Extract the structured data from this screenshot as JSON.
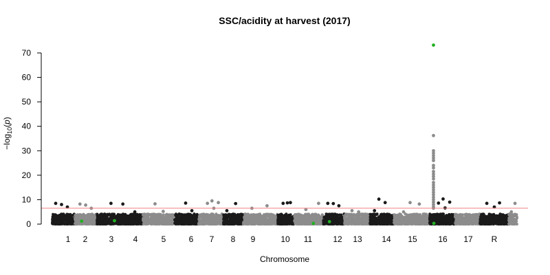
{
  "chart_data": {
    "type": "scatter",
    "title": "SSC/acidity at harvest (2017)",
    "xlabel": "Chromosome",
    "ylabel_prefix": "−log",
    "ylabel_sub": "10",
    "ylabel_var": "p",
    "ylim": [
      0,
      75
    ],
    "yticks": [
      0,
      10,
      20,
      30,
      40,
      50,
      60,
      70
    ],
    "threshold": 6.5,
    "threshold_color": "#f08080",
    "colors": {
      "dark": "#1a1a1a",
      "light": "#8c8c8c",
      "highlight": "#22b022"
    },
    "chromosomes": [
      {
        "label": "1",
        "color": "dark",
        "peaks": [
          8.5,
          8.0,
          7.0
        ]
      },
      {
        "label": "2",
        "color": "light",
        "peaks": [
          8.2,
          7.8,
          6.5,
          1.2
        ]
      },
      {
        "label": "3",
        "color": "dark",
        "peaks": [
          8.5,
          8.2,
          5.0,
          1.4
        ]
      },
      {
        "label": "4",
        "color": "light",
        "peaks": [
          8.3,
          5.2
        ]
      },
      {
        "label": "5",
        "color": "dark",
        "peaks": [
          8.6,
          5.5
        ]
      },
      {
        "label": "6",
        "color": "light",
        "peaks": [
          9.5,
          8.8,
          8.5,
          6.5
        ]
      },
      {
        "label": "7",
        "color": "dark",
        "peaks": [
          8.4,
          5.5
        ]
      },
      {
        "label": "8",
        "color": "light",
        "peaks": [
          7.5,
          6.5
        ]
      },
      {
        "label": "9",
        "color": "dark",
        "peaks": [
          8.8,
          8.5,
          8.7
        ]
      },
      {
        "label": "10",
        "color": "light",
        "peaks": [
          8.5,
          6.0,
          0.3
        ]
      },
      {
        "label": "11",
        "color": "dark",
        "peaks": [
          8.5,
          8.4,
          7.5,
          1.0
        ]
      },
      {
        "label": "12",
        "color": "light",
        "peaks": [
          5.5,
          5.0
        ]
      },
      {
        "label": "13",
        "color": "dark",
        "peaks": [
          10.2,
          8.8,
          5.5
        ]
      },
      {
        "label": "14",
        "color": "light",
        "peaks": [
          8.8,
          8.2,
          5.0
        ]
      },
      {
        "label": "15",
        "color": "dark",
        "peaks": [
          10.3,
          9.0,
          8.6,
          6.6,
          0.3
        ]
      },
      {
        "label": "16",
        "color": "light",
        "peaks": [
          36.2,
          30.0,
          29.0,
          28.0,
          27.0,
          26.0,
          24.0,
          23.0,
          21.5,
          20.5,
          19.5,
          18.5,
          17.0,
          16.0,
          15.0,
          14.0,
          13.0,
          12.0,
          11.0,
          10.0,
          9.0,
          8.0,
          7.0,
          6.5,
          73.2
        ]
      },
      {
        "label": "17",
        "color": "dark",
        "peaks": [
          8.7,
          8.5,
          7.0
        ]
      },
      {
        "label": "R",
        "color": "light",
        "peaks": [
          8.5,
          5.0
        ]
      }
    ]
  }
}
